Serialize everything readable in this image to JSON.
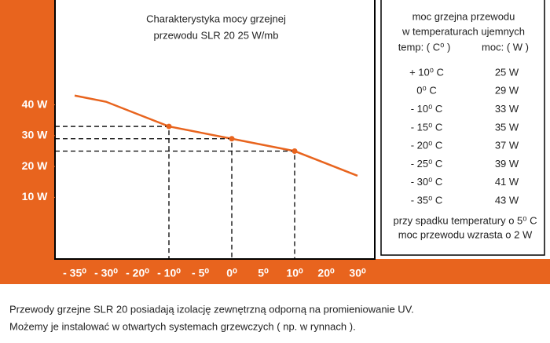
{
  "chart_data": {
    "type": "line",
    "title_lines": [
      "Charakterystyka mocy grzejnej",
      "przewodu SLR 20   25 W/mb"
    ],
    "categories": [
      "- 35⁰",
      "- 30⁰",
      "- 20⁰",
      "- 10⁰",
      "- 5⁰",
      "0⁰",
      "5⁰",
      "10⁰",
      "20⁰",
      "30⁰"
    ],
    "series": [
      {
        "color": "#e8641e",
        "values": [
          43,
          41,
          37,
          33,
          31,
          29,
          27,
          25,
          21,
          17
        ]
      },
      {
        "color": "#e8641e",
        "values": [
          null,
          null,
          null,
          33,
          null,
          29,
          null,
          25,
          null,
          null
        ]
      }
    ],
    "ylim": [
      -10,
      74
    ],
    "yticks": [
      {
        "value": 40,
        "label": "40 W"
      },
      {
        "value": 30,
        "label": "30 W"
      },
      {
        "value": 20,
        "label": "20 W"
      },
      {
        "value": 10,
        "label": "10 W"
      }
    ],
    "frame_color": "#e8641e"
  },
  "table": {
    "heading": [
      "moc grzejna przewodu",
      "w temperaturach ujemnych"
    ],
    "columns": [
      "temp: ( C⁰ )",
      "moc: ( W )"
    ],
    "rows": [
      [
        "+ 10⁰ C",
        "25 W"
      ],
      [
        "0⁰ C",
        "29 W"
      ],
      [
        "- 10⁰ C",
        "33 W"
      ],
      [
        "- 15⁰ C",
        "35 W"
      ],
      [
        "- 20⁰ C",
        "37 W"
      ],
      [
        "- 25⁰ C",
        "39 W"
      ],
      [
        "- 30⁰ C",
        "41 W"
      ],
      [
        "- 35⁰ C",
        "43 W"
      ]
    ],
    "note": [
      "przy spadku temperatury o 5⁰ C",
      "moc przewodu wzrasta o 2 W"
    ]
  },
  "caption": [
    "Przewody grzejne SLR 20 posiadają izolację zewnętrzną odporną na promieniowanie UV.",
    "Możemy je instalować w otwartych systemach grzewczych ( np. w rynnach )."
  ]
}
